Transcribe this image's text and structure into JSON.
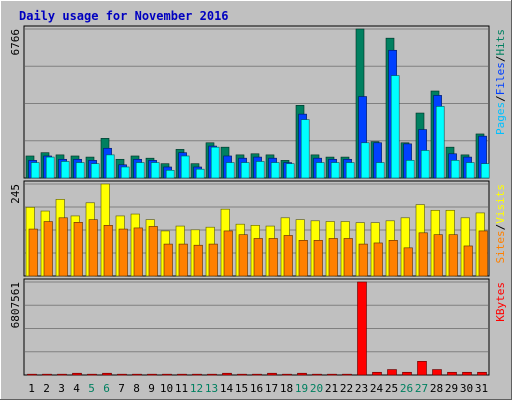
{
  "chart_data": {
    "type": "bar",
    "title": "Daily usage for November 2016",
    "x": [
      "1",
      "2",
      "3",
      "4",
      "5",
      "6",
      "7",
      "8",
      "9",
      "10",
      "11",
      "12",
      "13",
      "14",
      "15",
      "16",
      "17",
      "18",
      "19",
      "20",
      "21",
      "22",
      "23",
      "24",
      "25",
      "26",
      "27",
      "28",
      "29",
      "30",
      "31"
    ],
    "weekend_days": [
      "5",
      "6",
      "12",
      "13",
      "19",
      "20",
      "26",
      "27"
    ],
    "panels": [
      {
        "id": "top",
        "ymax": 6766,
        "ytick_label": "6766",
        "legend": [
          {
            "text": "Pages",
            "color": "#00c0ff"
          },
          {
            "text": "/",
            "color": "#000000"
          },
          {
            "text": "Files",
            "color": "#0040ff"
          },
          {
            "text": "/",
            "color": "#000000"
          },
          {
            "text": "Hits",
            "color": "#008060"
          }
        ],
        "series": [
          {
            "name": "Hits",
            "color": "#008060",
            "values": [
              1000,
              1150,
              1050,
              1000,
              950,
              1800,
              850,
              1000,
              900,
              650,
              1300,
              650,
              1600,
              1400,
              1050,
              1100,
              1050,
              800,
              3300,
              1050,
              950,
              950,
              6766,
              1650,
              6350,
              1600,
              2950,
              3950,
              1400,
              1050,
              2000
            ]
          },
          {
            "name": "Files",
            "color": "#0040ff",
            "values": [
              800,
              1000,
              850,
              850,
              800,
              1350,
              600,
              850,
              800,
              500,
              1150,
              500,
              1450,
              1000,
              900,
              950,
              900,
              700,
              2900,
              900,
              850,
              850,
              3700,
              1600,
              5800,
              1550,
              2200,
              3750,
              1100,
              950,
              1900
            ]
          },
          {
            "name": "Pages",
            "color": "#00ffff",
            "values": [
              700,
              950,
              750,
              700,
              650,
              1050,
              500,
              700,
              700,
              350,
              1000,
              400,
              1400,
              700,
              700,
              750,
              700,
              650,
              2650,
              700,
              700,
              700,
              1600,
              700,
              4650,
              800,
              1250,
              3250,
              800,
              700,
              650
            ]
          }
        ]
      },
      {
        "id": "middle",
        "ymax": 245,
        "ytick_label": "245",
        "legend": [
          {
            "text": "Sites",
            "color": "#ff8000"
          },
          {
            "text": "/",
            "color": "#000000"
          },
          {
            "text": "Visits",
            "color": "#ffff00"
          }
        ],
        "series": [
          {
            "name": "Visits",
            "color": "#ffff00",
            "values": [
              183,
              173,
              204,
              160,
              195,
              245,
              160,
              165,
              150,
              120,
              133,
              123,
              130,
              178,
              138,
              135,
              133,
              155,
              150,
              147,
              145,
              145,
              142,
              142,
              147,
              155,
              190,
              175,
              175,
              155,
              168
            ]
          },
          {
            "name": "Sites",
            "color": "#ff8000",
            "values": [
              125,
              145,
              155,
              143,
              150,
              135,
              125,
              128,
              132,
              85,
              85,
              82,
              85,
              120,
              110,
              100,
              100,
              108,
              95,
              95,
              100,
              100,
              85,
              88,
              95,
              75,
              115,
              110,
              110,
              80,
              120
            ]
          }
        ]
      },
      {
        "id": "bottom",
        "ymax": 6807561,
        "ytick_label": "6807561",
        "legend": [
          {
            "text": "KBytes",
            "color": "#ff0000"
          }
        ],
        "series": [
          {
            "name": "KBytes",
            "color": "#ff0000",
            "values": [
              60000,
              60000,
              60000,
              130000,
              60000,
              130000,
              60000,
              60000,
              60000,
              60000,
              60000,
              60000,
              60000,
              130000,
              60000,
              60000,
              130000,
              60000,
              130000,
              60000,
              60000,
              60000,
              6807561,
              200000,
              400000,
              200000,
              1000000,
              400000,
              200000,
              200000,
              200000
            ]
          }
        ]
      }
    ]
  }
}
